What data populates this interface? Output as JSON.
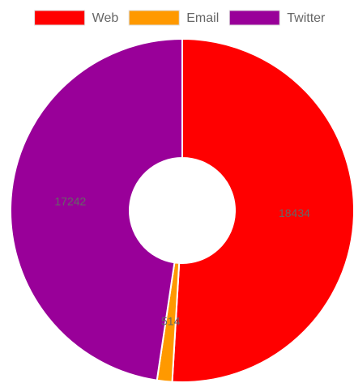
{
  "chart_data": {
    "type": "doughnut",
    "categories": [
      "Web",
      "Email",
      "Twitter"
    ],
    "values": [
      18434,
      514,
      17242
    ],
    "colors": [
      "#ff0000",
      "#ff9900",
      "#990099"
    ],
    "legend": "top"
  }
}
